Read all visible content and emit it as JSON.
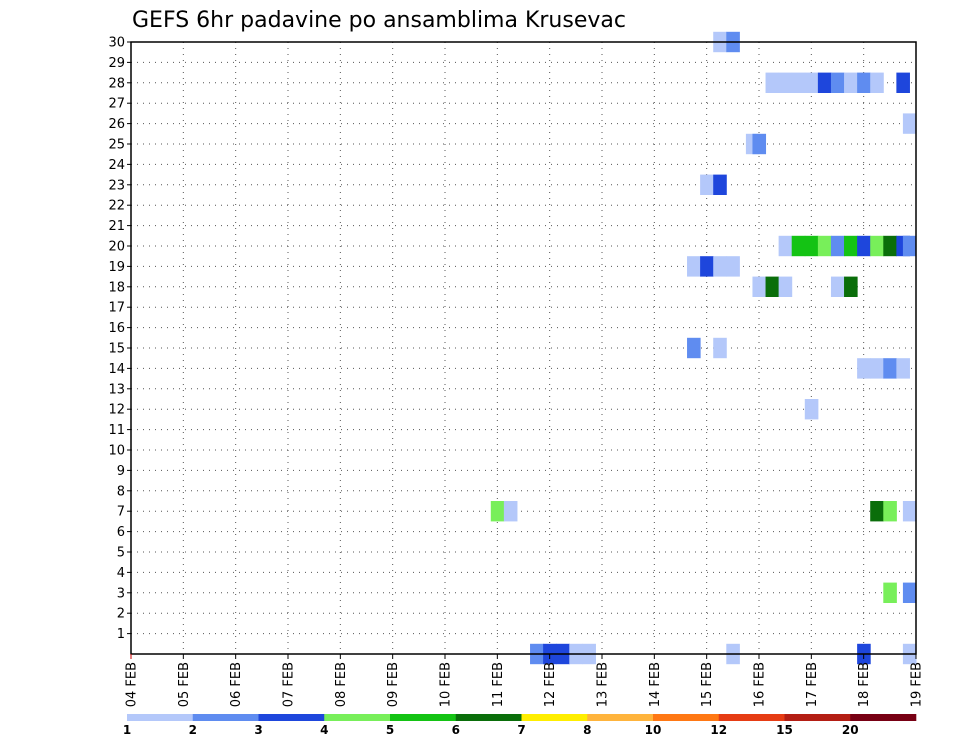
{
  "chart_data": {
    "type": "heatmap",
    "title": "GEFS 6hr padavine po ansamblima Krusevac",
    "xlabel": "",
    "ylabel": "",
    "x_ticks": [
      "04 FEB",
      "05 FEB",
      "06 FEB",
      "07 FEB",
      "08 FEB",
      "09 FEB",
      "10 FEB",
      "11 FEB",
      "12 FEB",
      "13 FEB",
      "14 FEB",
      "15 FEB",
      "16 FEB",
      "17 FEB",
      "18 FEB",
      "19 FEB"
    ],
    "y_ticks": [
      1,
      2,
      3,
      4,
      5,
      6,
      7,
      8,
      9,
      10,
      11,
      12,
      13,
      14,
      15,
      16,
      17,
      18,
      19,
      20,
      21,
      22,
      23,
      24,
      25,
      26,
      27,
      28,
      29,
      30
    ],
    "xlim_days": [
      0,
      15
    ],
    "ylim": [
      0,
      30
    ],
    "grid": true,
    "color_levels": [
      1,
      2,
      3,
      4,
      5,
      6,
      7,
      8,
      10,
      12,
      15,
      20
    ],
    "level_colors": [
      "#b4c8fa",
      "#5f8cf0",
      "#1e46dc",
      "#78ef5a",
      "#14c314",
      "#0a6e0a",
      "#ffee00",
      "#ffb43c",
      "#ff7814",
      "#e63c14",
      "#b41e14",
      "#780014"
    ],
    "cells": [
      {
        "member": 30,
        "day": 11.25,
        "v": 1
      },
      {
        "member": 30,
        "day": 11.5,
        "v": 2
      },
      {
        "member": 28,
        "day": 12.25,
        "v": 1
      },
      {
        "member": 28,
        "day": 12.5,
        "v": 1
      },
      {
        "member": 28,
        "day": 12.75,
        "v": 1
      },
      {
        "member": 28,
        "day": 13.0,
        "v": 1
      },
      {
        "member": 28,
        "day": 13.25,
        "v": 3
      },
      {
        "member": 28,
        "day": 13.5,
        "v": 2
      },
      {
        "member": 28,
        "day": 13.75,
        "v": 1
      },
      {
        "member": 28,
        "day": 14.0,
        "v": 2
      },
      {
        "member": 28,
        "day": 14.25,
        "v": 1
      },
      {
        "member": 28,
        "day": 14.75,
        "v": 3
      },
      {
        "member": 26,
        "day": 14.875,
        "v": 1
      },
      {
        "member": 25,
        "day": 11.875,
        "v": 1
      },
      {
        "member": 25,
        "day": 12.0,
        "v": 2
      },
      {
        "member": 23,
        "day": 11.0,
        "v": 1
      },
      {
        "member": 23,
        "day": 11.25,
        "v": 3
      },
      {
        "member": 20,
        "day": 12.5,
        "v": 1
      },
      {
        "member": 20,
        "day": 12.75,
        "v": 5
      },
      {
        "member": 20,
        "day": 13.0,
        "v": 5
      },
      {
        "member": 20,
        "day": 13.25,
        "v": 4
      },
      {
        "member": 20,
        "day": 13.5,
        "v": 2
      },
      {
        "member": 20,
        "day": 13.75,
        "v": 5
      },
      {
        "member": 20,
        "day": 14.0,
        "v": 3
      },
      {
        "member": 20,
        "day": 14.25,
        "v": 4
      },
      {
        "member": 20,
        "day": 14.5,
        "v": 6
      },
      {
        "member": 20,
        "day": 14.75,
        "v": 3
      },
      {
        "member": 20,
        "day": 14.875,
        "v": 2
      },
      {
        "member": 19,
        "day": 10.75,
        "v": 1
      },
      {
        "member": 19,
        "day": 11.0,
        "v": 3
      },
      {
        "member": 19,
        "day": 11.25,
        "v": 1
      },
      {
        "member": 19,
        "day": 11.5,
        "v": 1
      },
      {
        "member": 18,
        "day": 12.0,
        "v": 1
      },
      {
        "member": 18,
        "day": 12.25,
        "v": 6
      },
      {
        "member": 18,
        "day": 12.5,
        "v": 1
      },
      {
        "member": 18,
        "day": 13.5,
        "v": 1
      },
      {
        "member": 18,
        "day": 13.75,
        "v": 6
      },
      {
        "member": 15,
        "day": 10.75,
        "v": 2
      },
      {
        "member": 15,
        "day": 11.25,
        "v": 1
      },
      {
        "member": 14,
        "day": 14.0,
        "v": 1
      },
      {
        "member": 14,
        "day": 14.25,
        "v": 1
      },
      {
        "member": 14,
        "day": 14.5,
        "v": 2
      },
      {
        "member": 14,
        "day": 14.75,
        "v": 1
      },
      {
        "member": 12,
        "day": 13.0,
        "v": 1
      },
      {
        "member": 7,
        "day": 7.0,
        "v": 4
      },
      {
        "member": 7,
        "day": 7.25,
        "v": 1
      },
      {
        "member": 7,
        "day": 14.25,
        "v": 6
      },
      {
        "member": 7,
        "day": 14.5,
        "v": 4
      },
      {
        "member": 7,
        "day": 14.875,
        "v": 1
      },
      {
        "member": 3,
        "day": 14.5,
        "v": 4
      },
      {
        "member": 3,
        "day": 14.875,
        "v": 2
      },
      {
        "member": 0,
        "day": 7.75,
        "v": 2
      },
      {
        "member": 0,
        "day": 8.0,
        "v": 3
      },
      {
        "member": 0,
        "day": 8.25,
        "v": 3
      },
      {
        "member": 0,
        "day": 8.5,
        "v": 1
      },
      {
        "member": 0,
        "day": 8.75,
        "v": 1
      },
      {
        "member": 0,
        "day": 11.5,
        "v": 1
      },
      {
        "member": 0,
        "day": 14.0,
        "v": 3
      },
      {
        "member": 0,
        "day": 14.875,
        "v": 1
      }
    ]
  }
}
